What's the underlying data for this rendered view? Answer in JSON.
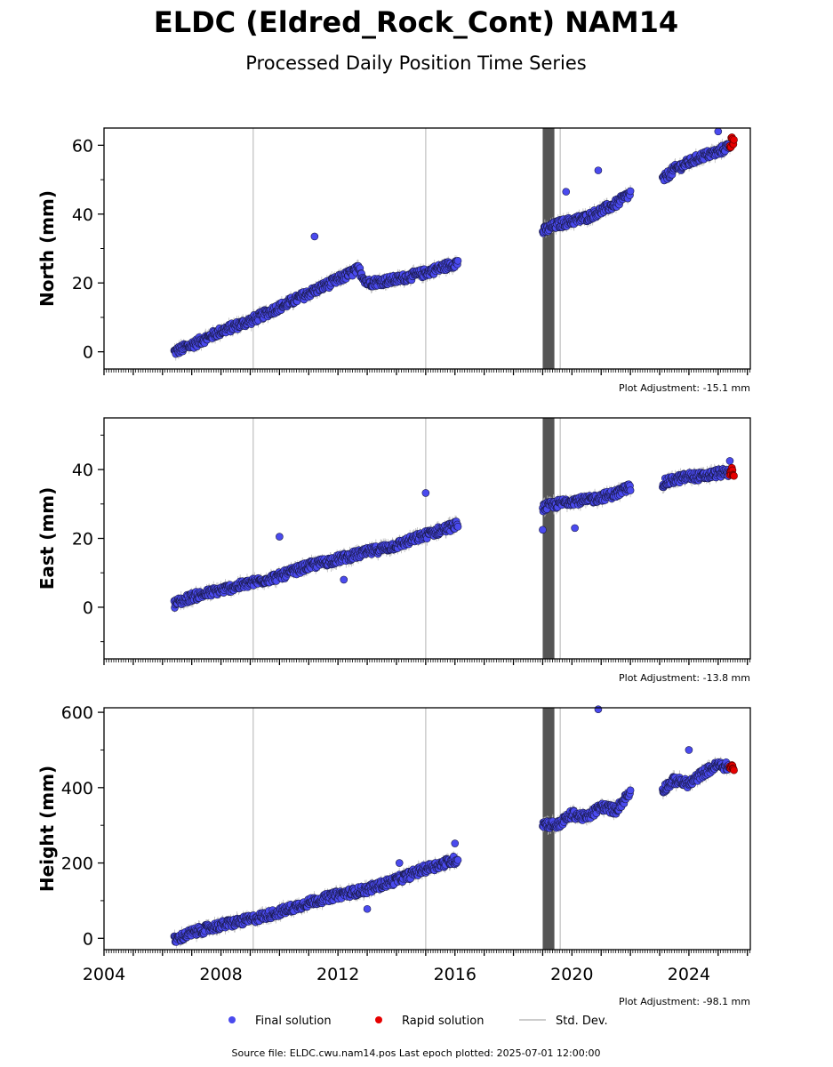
{
  "title": "ELDC (Eldred_Rock_Cont) NAM14",
  "subtitle": "Processed Daily Position Time Series",
  "colors": {
    "final": "#4a4aee",
    "rapid": "#e60000",
    "stddev": "#bbbbbb",
    "gap": "#555555",
    "vline": "#cccccc"
  },
  "legend": {
    "final": "Final solution",
    "rapid": "Rapid solution",
    "stddev": "Std. Dev."
  },
  "footer": "Source file: ELDC.cwu.nam14.pos  Last epoch plotted: 2025-07-01 12:00:00",
  "chart_data": [
    {
      "type": "scatter",
      "ylabel": "North (mm)",
      "adjustment": "Plot Adjustment: -15.1 mm",
      "xlim": [
        2004.0,
        2026.1
      ],
      "ylim": [
        -5,
        65
      ],
      "yticks": [
        0,
        20,
        40,
        60
      ],
      "xticks": [],
      "vlines": [
        2009.1,
        2015.0,
        2019.6
      ],
      "gap": [
        2019.0,
        2019.4
      ],
      "series": [
        {
          "name": "Final solution",
          "segments": [
            {
              "x": [
                2006.4,
                2007.0,
                2008.0,
                2009.0,
                2010.0,
                2011.0,
                2012.0,
                2012.7,
                2013.0,
                2014.0,
                2015.0,
                2016.1
              ],
              "y": [
                0,
                2,
                6,
                9,
                13,
                17,
                21,
                24,
                20,
                21,
                23,
                26
              ]
            },
            {
              "x": [
                2019.0,
                2019.5,
                2020.0,
                2020.5,
                2021.0,
                2021.5,
                2022.0
              ],
              "y": [
                35,
                37,
                38,
                39,
                41,
                43,
                46
              ]
            },
            {
              "x": [
                2023.1,
                2023.5,
                2024.0,
                2024.5,
                2025.0,
                2025.4
              ],
              "y": [
                50,
                53,
                55,
                57,
                58,
                60
              ]
            }
          ]
        },
        {
          "name": "Rapid solution",
          "x": [
            2025.4,
            2025.45,
            2025.5
          ],
          "y": [
            60,
            62,
            61
          ]
        }
      ],
      "outliers": [
        [
          2011.2,
          33.5
        ],
        [
          2020.9,
          52.7
        ],
        [
          2019.8,
          46.5
        ],
        [
          2025.0,
          64
        ]
      ]
    },
    {
      "type": "scatter",
      "ylabel": "East (mm)",
      "adjustment": "Plot Adjustment: -13.8 mm",
      "xlim": [
        2004.0,
        2026.1
      ],
      "ylim": [
        -15,
        55
      ],
      "yticks": [
        0,
        20,
        40
      ],
      "xticks": [],
      "vlines": [
        2009.1,
        2015.0,
        2019.6
      ],
      "gap": [
        2019.0,
        2019.4
      ],
      "series": [
        {
          "name": "Final solution",
          "segments": [
            {
              "x": [
                2006.4,
                2007.0,
                2008.0,
                2009.0,
                2010.0,
                2011.0,
                2012.0,
                2013.0,
                2014.0,
                2015.0,
                2016.1
              ],
              "y": [
                1,
                3,
                5,
                7,
                9,
                12,
                14,
                16,
                18,
                21,
                24
              ]
            },
            {
              "x": [
                2019.0,
                2019.5,
                2020.0,
                2020.5,
                2021.0,
                2021.5,
                2022.0
              ],
              "y": [
                29,
                30,
                31,
                31,
                32,
                33,
                35
              ]
            },
            {
              "x": [
                2023.1,
                2023.5,
                2024.0,
                2024.5,
                2025.0,
                2025.4
              ],
              "y": [
                36,
                37,
                38,
                38,
                39,
                39
              ]
            }
          ]
        },
        {
          "name": "Rapid solution",
          "x": [
            2025.4,
            2025.45,
            2025.5
          ],
          "y": [
            39,
            40,
            38
          ]
        }
      ],
      "outliers": [
        [
          2015.0,
          33.2
        ],
        [
          2010.0,
          20.5
        ],
        [
          2020.1,
          23
        ],
        [
          2012.2,
          8
        ],
        [
          2019.0,
          22.5
        ],
        [
          2025.4,
          42.5
        ]
      ]
    },
    {
      "type": "scatter",
      "ylabel": "Height (mm)",
      "adjustment": "Plot Adjustment: -98.1 mm",
      "xlim": [
        2004.0,
        2026.1
      ],
      "ylim": [
        -30,
        612
      ],
      "yticks": [
        0,
        200,
        400,
        600
      ],
      "xticks": [
        "2004",
        "2008",
        "2012",
        "2016",
        "2020",
        "2024"
      ],
      "vlines": [
        2009.1,
        2015.0,
        2019.6
      ],
      "gap": [
        2019.0,
        2019.4
      ],
      "series": [
        {
          "name": "Final solution",
          "segments": [
            {
              "x": [
                2006.4,
                2007.0,
                2008.0,
                2009.0,
                2010.0,
                2011.0,
                2012.0,
                2013.0,
                2014.0,
                2015.0,
                2016.1
              ],
              "y": [
                -5,
                15,
                35,
                50,
                70,
                95,
                115,
                130,
                155,
                185,
                210
              ]
            },
            {
              "x": [
                2019.0,
                2019.5,
                2020.0,
                2020.5,
                2021.0,
                2021.5,
                2022.0
              ],
              "y": [
                305,
                300,
                330,
                320,
                350,
                340,
                390
              ]
            },
            {
              "x": [
                2023.1,
                2023.5,
                2024.0,
                2024.5,
                2025.0,
                2025.4
              ],
              "y": [
                395,
                420,
                410,
                440,
                460,
                455
              ]
            }
          ]
        },
        {
          "name": "Rapid solution",
          "x": [
            2025.4,
            2025.45,
            2025.5
          ],
          "y": [
            455,
            460,
            450
          ]
        }
      ],
      "outliers": [
        [
          2020.9,
          608
        ],
        [
          2024.0,
          500
        ],
        [
          2016.0,
          252
        ],
        [
          2013.0,
          78
        ],
        [
          2014.1,
          200
        ]
      ]
    }
  ]
}
